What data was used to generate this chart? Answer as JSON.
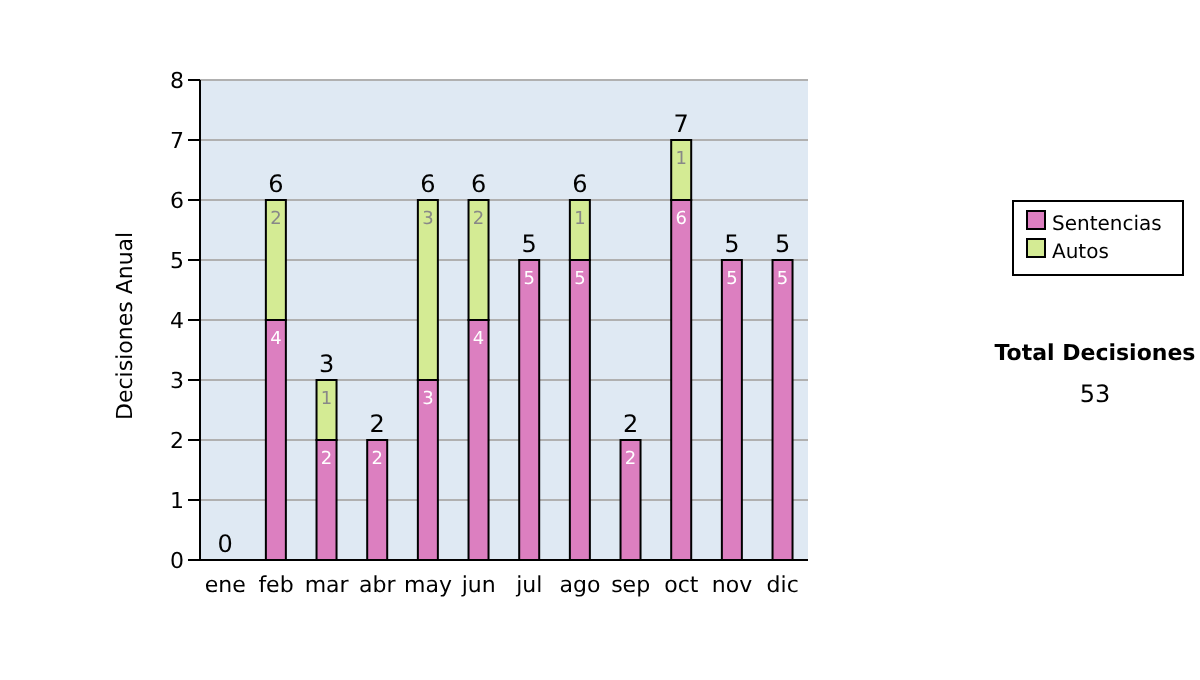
{
  "chart_data": {
    "type": "bar",
    "stacked": true,
    "ylabel": "Decisiones Anual",
    "categories": [
      "ene",
      "feb",
      "mar",
      "abr",
      "may",
      "jun",
      "jul",
      "ago",
      "sep",
      "oct",
      "nov",
      "dic"
    ],
    "series": [
      {
        "name": "Sentencias",
        "color": "#dc7fc0",
        "values": [
          0,
          4,
          2,
          2,
          3,
          4,
          5,
          5,
          2,
          6,
          5,
          5
        ],
        "value_labels": [
          null,
          "4",
          "2",
          "2",
          "3",
          "4",
          "5",
          "5",
          "2",
          "6",
          "5",
          "5"
        ]
      },
      {
        "name": "Autos",
        "color": "#d4eb94",
        "values": [
          0,
          2,
          1,
          0,
          3,
          2,
          0,
          1,
          0,
          1,
          0,
          0
        ],
        "value_labels": [
          null,
          "2",
          "1",
          null,
          "3",
          "2",
          null,
          "1",
          null,
          "1",
          null,
          null
        ]
      }
    ],
    "totals": [
      "0",
      "6",
      "3",
      "2",
      "6",
      "6",
      "5",
      "6",
      "2",
      "7",
      "5",
      "5"
    ],
    "ylim": [
      0,
      8
    ],
    "yticks": [
      0,
      1,
      2,
      3,
      4,
      5,
      6,
      7,
      8
    ],
    "grid": "y",
    "legend": "right",
    "annotations": [
      "Total Decisiones",
      "53"
    ]
  }
}
